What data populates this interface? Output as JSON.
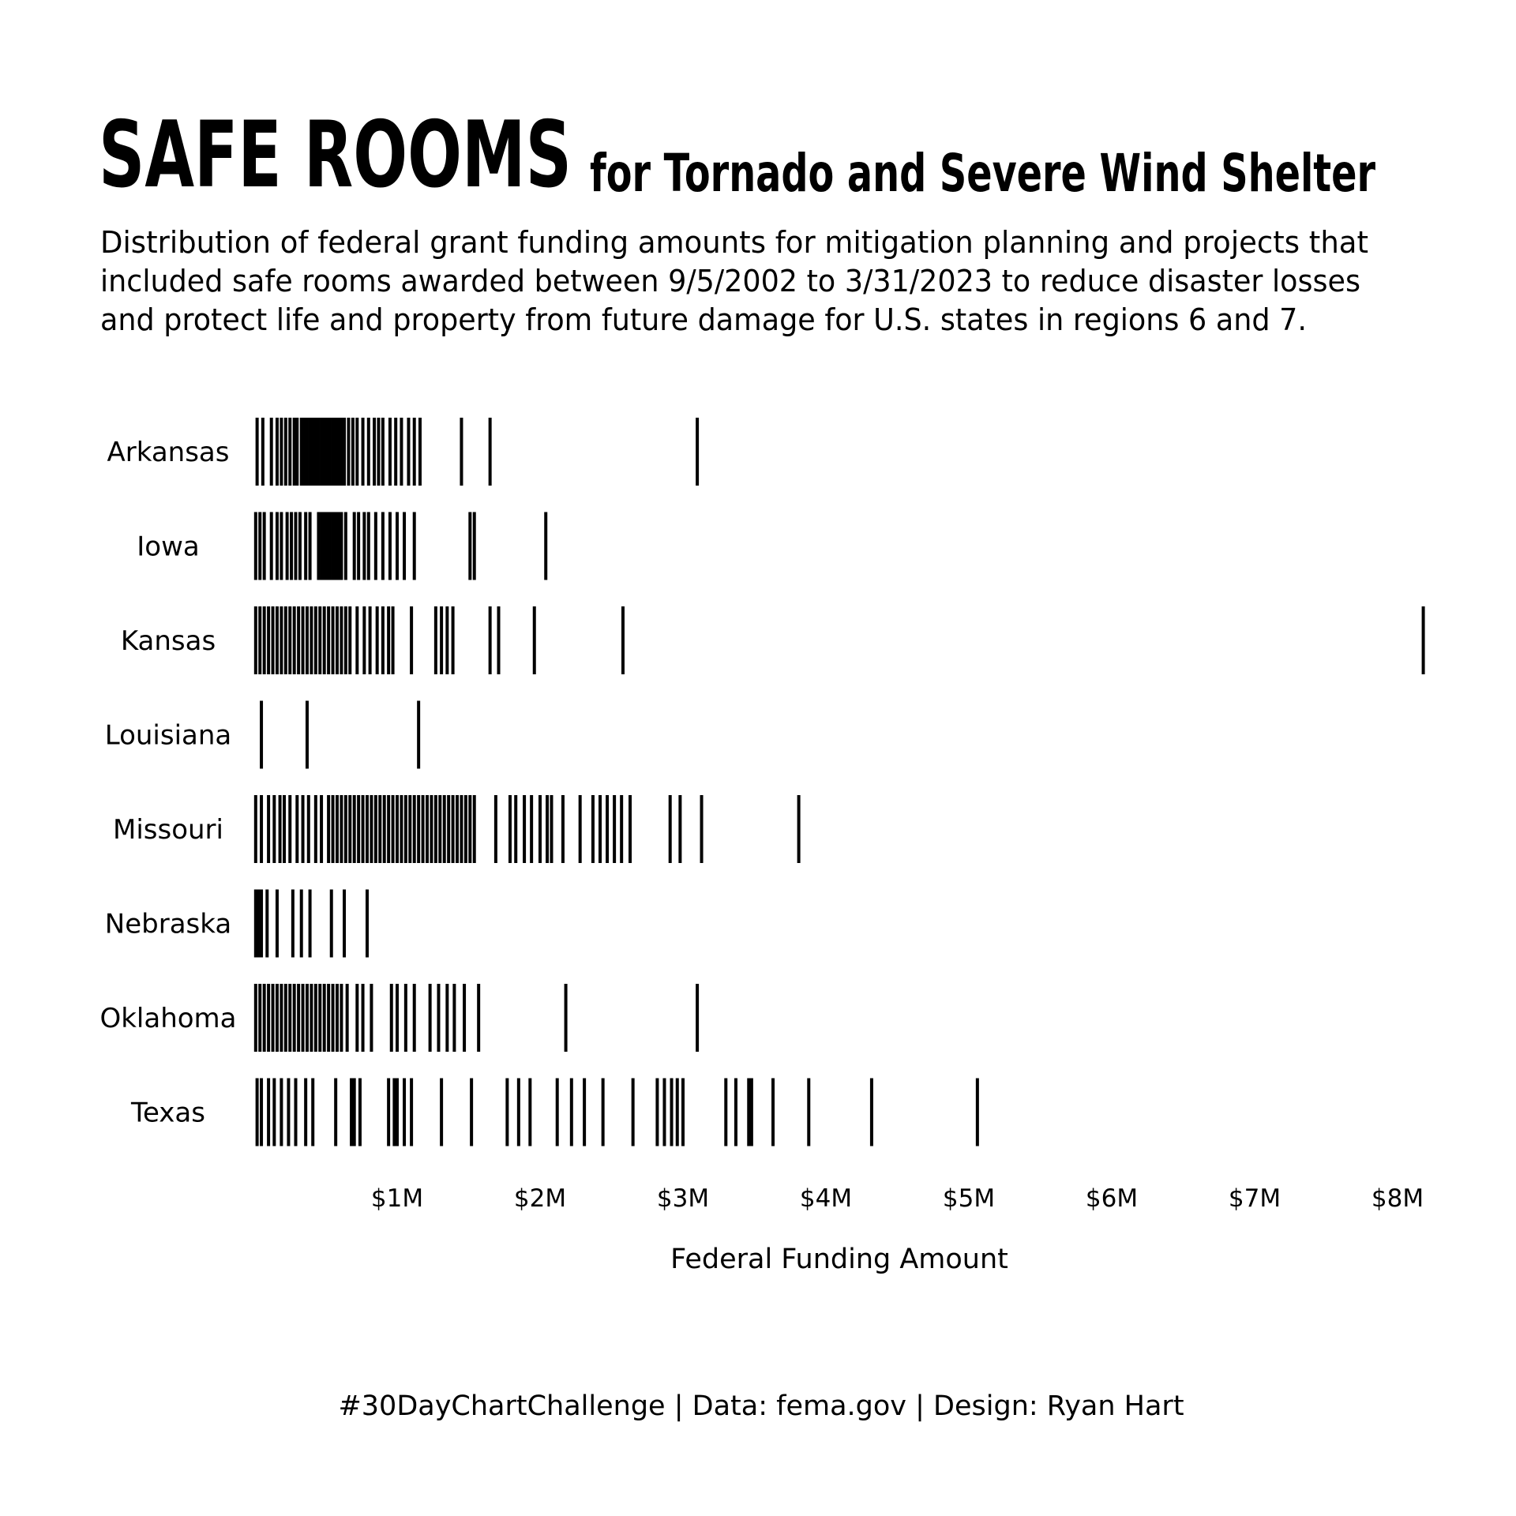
{
  "chart_data": {
    "type": "strip",
    "title": "SAFE ROOMS",
    "title_suffix": "for Tornado and Severe Wind Shelter",
    "subtitle": [
      "Distribution of federal grant funding amounts for mitigation planning and projects that",
      "included safe rooms awarded between 9/5/2002 to 3/31/2023 to reduce disaster losses",
      "and protect life and property from future damage for U.S. states in regions 6 and 7."
    ],
    "x_label": "Federal Funding Amount",
    "caption": "#30DayChartChallenge | Data: fema.gov | Design: Ryan Hart",
    "xlim": [
      0,
      8.2
    ],
    "xticks": [
      {
        "value": 1,
        "label": "$1M"
      },
      {
        "value": 2,
        "label": "$2M"
      },
      {
        "value": 3,
        "label": "$3M"
      },
      {
        "value": 4,
        "label": "$4M"
      },
      {
        "value": 5,
        "label": "$5M"
      },
      {
        "value": 6,
        "label": "$6M"
      },
      {
        "value": 7,
        "label": "$7M"
      },
      {
        "value": 8,
        "label": "$8M"
      }
    ],
    "color": "#000000",
    "series": [
      {
        "name": "Arkansas",
        "values": [
          0.02,
          0.06,
          0.12,
          0.16,
          0.19,
          0.22,
          0.25,
          0.28,
          0.3,
          0.33,
          0.35,
          0.37,
          0.39,
          0.41,
          0.43,
          0.45,
          0.47,
          0.49,
          0.51,
          0.53,
          0.55,
          0.57,
          0.59,
          0.61,
          0.63,
          0.66,
          0.69,
          0.72,
          0.76,
          0.8,
          0.84,
          0.87,
          0.9,
          0.95,
          0.99,
          1.03,
          1.08,
          1.12,
          1.16,
          1.45,
          1.65,
          3.1
        ]
      },
      {
        "name": "Iowa",
        "values": [
          0.01,
          0.04,
          0.07,
          0.12,
          0.16,
          0.19,
          0.23,
          0.26,
          0.29,
          0.32,
          0.36,
          0.39,
          0.45,
          0.47,
          0.49,
          0.51,
          0.53,
          0.55,
          0.57,
          0.59,
          0.61,
          0.64,
          0.7,
          0.73,
          0.77,
          0.8,
          0.85,
          0.9,
          0.95,
          1.0,
          1.05,
          1.12,
          1.51,
          1.54,
          2.04
        ]
      },
      {
        "name": "Kansas",
        "values": [
          0.01,
          0.04,
          0.07,
          0.1,
          0.13,
          0.16,
          0.19,
          0.22,
          0.25,
          0.28,
          0.31,
          0.34,
          0.37,
          0.4,
          0.43,
          0.46,
          0.49,
          0.52,
          0.55,
          0.58,
          0.61,
          0.64,
          0.67,
          0.72,
          0.77,
          0.81,
          0.86,
          0.9,
          0.94,
          0.97,
          1.1,
          1.27,
          1.31,
          1.35,
          1.39,
          1.65,
          1.71,
          1.96,
          2.58,
          8.18
        ]
      },
      {
        "name": "Louisiana",
        "values": [
          0.05,
          0.37,
          1.15
        ]
      },
      {
        "name": "Missouri",
        "values": [
          0.01,
          0.05,
          0.1,
          0.14,
          0.18,
          0.21,
          0.25,
          0.3,
          0.34,
          0.38,
          0.43,
          0.47,
          0.52,
          0.55,
          0.58,
          0.61,
          0.64,
          0.67,
          0.7,
          0.73,
          0.76,
          0.79,
          0.82,
          0.85,
          0.88,
          0.91,
          0.94,
          0.97,
          1.0,
          1.03,
          1.06,
          1.09,
          1.12,
          1.15,
          1.18,
          1.21,
          1.24,
          1.27,
          1.3,
          1.33,
          1.36,
          1.39,
          1.42,
          1.45,
          1.48,
          1.51,
          1.54,
          1.69,
          1.79,
          1.83,
          1.89,
          1.94,
          2.0,
          2.05,
          2.08,
          2.16,
          2.28,
          2.37,
          2.42,
          2.47,
          2.52,
          2.57,
          2.63,
          2.91,
          2.98,
          3.13,
          3.81
        ]
      },
      {
        "name": "Nebraska",
        "values": [
          0.01,
          0.03,
          0.05,
          0.09,
          0.16,
          0.27,
          0.33,
          0.39,
          0.54,
          0.63,
          0.79
        ]
      },
      {
        "name": "Oklahoma",
        "values": [
          0.01,
          0.04,
          0.07,
          0.1,
          0.13,
          0.16,
          0.19,
          0.22,
          0.25,
          0.28,
          0.31,
          0.34,
          0.37,
          0.4,
          0.43,
          0.46,
          0.49,
          0.52,
          0.55,
          0.58,
          0.61,
          0.65,
          0.72,
          0.76,
          0.82,
          0.96,
          1.0,
          1.06,
          1.12,
          1.23,
          1.29,
          1.35,
          1.4,
          1.47,
          1.57,
          2.18,
          3.1
        ]
      },
      {
        "name": "Texas",
        "values": [
          0.02,
          0.05,
          0.1,
          0.14,
          0.19,
          0.24,
          0.29,
          0.36,
          0.41,
          0.57,
          0.68,
          0.7,
          0.74,
          0.94,
          0.98,
          1.0,
          1.05,
          1.1,
          1.31,
          1.52,
          1.77,
          1.85,
          1.93,
          2.12,
          2.22,
          2.31,
          2.44,
          2.65,
          2.82,
          2.87,
          2.92,
          2.96,
          3.0,
          3.3,
          3.37,
          3.46,
          3.48,
          3.63,
          3.88,
          4.32,
          5.06
        ]
      }
    ]
  }
}
